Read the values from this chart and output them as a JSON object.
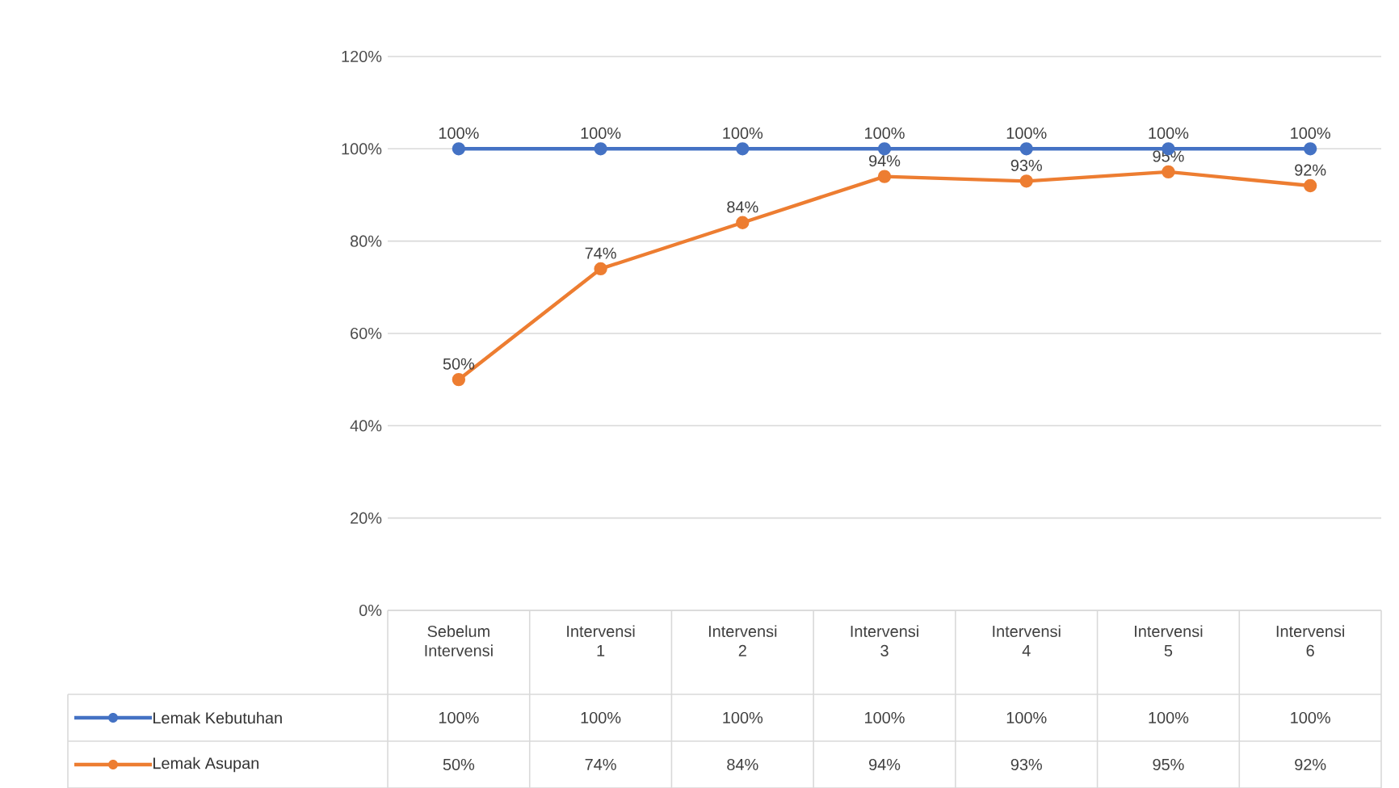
{
  "chart_data": {
    "type": "line",
    "categories": [
      "Sebelum Intervensi",
      "Intervensi 1",
      "Intervensi 2",
      "Intervensi 3",
      "Intervensi 4",
      "Intervensi 5",
      "Intervensi 6"
    ],
    "series": [
      {
        "name": "Lemak Kebutuhan",
        "color": "#4472c4",
        "values": [
          100,
          100,
          100,
          100,
          100,
          100,
          100
        ],
        "value_labels": [
          "100%",
          "100%",
          "100%",
          "100%",
          "100%",
          "100%",
          "100%"
        ]
      },
      {
        "name": "Lemak Asupan",
        "color": "#ed7d31",
        "values": [
          50,
          74,
          84,
          94,
          93,
          95,
          92
        ],
        "value_labels": [
          "50%",
          "74%",
          "84%",
          "94%",
          "93%",
          "95%",
          "92%"
        ]
      }
    ],
    "ylim": [
      0,
      120
    ],
    "yticks": [
      {
        "value": 0,
        "label": "0%"
      },
      {
        "value": 20,
        "label": "20%"
      },
      {
        "value": 40,
        "label": "40%"
      },
      {
        "value": 60,
        "label": "60%"
      },
      {
        "value": 80,
        "label": "80%"
      },
      {
        "value": 100,
        "label": "100%"
      },
      {
        "value": 120,
        "label": "120%"
      }
    ],
    "grid": "y",
    "legend": "bottom",
    "marker": "circle"
  }
}
